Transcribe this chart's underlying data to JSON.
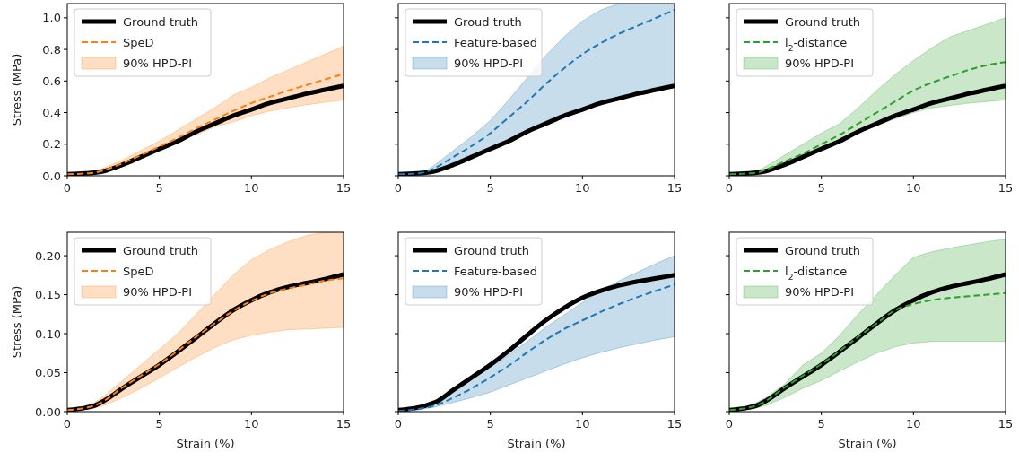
{
  "chart_data": [
    {
      "type": "line",
      "ylabel": "Stress (MPa)",
      "x": [
        0,
        1,
        1.5,
        2,
        3,
        4,
        5,
        6,
        7,
        8,
        9,
        10,
        11,
        12,
        13,
        14,
        15
      ],
      "xlim": [
        0,
        15
      ],
      "xticks": [
        0,
        5,
        10,
        15
      ],
      "ylim": [
        0,
        1.09
      ],
      "yticks": [
        {
          "value": 0,
          "label": "0.0"
        },
        {
          "value": 0.2,
          "label": "0.2"
        },
        {
          "value": 0.4,
          "label": "0.4"
        },
        {
          "value": 0.6,
          "label": "0.6"
        },
        {
          "value": 0.8,
          "label": "0.8"
        },
        {
          "value": 1,
          "label": "1.0"
        }
      ],
      "legend": "top left",
      "grid": false,
      "series": [
        {
          "name": "Ground truth",
          "color": "#000000",
          "line_style": "solid",
          "values": [
            0.01,
            0.015,
            0.02,
            0.03,
            0.07,
            0.12,
            0.17,
            0.22,
            0.28,
            0.33,
            0.38,
            0.42,
            0.46,
            0.49,
            0.52,
            0.545,
            0.57
          ]
        },
        {
          "name": "SpeD",
          "color": "#ff7f0e",
          "line_style": "dashed",
          "values": [
            0.01,
            0.015,
            0.02,
            0.035,
            0.08,
            0.13,
            0.185,
            0.24,
            0.3,
            0.355,
            0.41,
            0.46,
            0.5,
            0.54,
            0.575,
            0.61,
            0.645
          ],
          "lower": [
            0.005,
            0.01,
            0.015,
            0.025,
            0.06,
            0.11,
            0.16,
            0.21,
            0.26,
            0.31,
            0.34,
            0.38,
            0.41,
            0.43,
            0.45,
            0.465,
            0.48
          ],
          "upper": [
            0.01,
            0.02,
            0.03,
            0.05,
            0.1,
            0.16,
            0.22,
            0.29,
            0.36,
            0.43,
            0.51,
            0.56,
            0.62,
            0.67,
            0.72,
            0.77,
            0.82
          ]
        },
        {
          "name": "90% HPD-PI",
          "type": "area",
          "color": "#ff7f0e",
          "values": [
            null,
            null,
            null,
            null,
            null,
            null,
            null,
            null,
            null,
            null,
            null,
            null,
            null,
            null,
            null,
            null,
            null
          ]
        }
      ]
    },
    {
      "type": "line",
      "x": [
        0,
        1,
        1.5,
        2,
        3,
        4,
        5,
        6,
        7,
        8,
        9,
        10,
        11,
        12,
        13,
        14,
        15
      ],
      "xlim": [
        0,
        15
      ],
      "xticks": [
        0,
        5,
        10,
        15
      ],
      "ylim": [
        0,
        1.09
      ],
      "yticks": [
        0,
        0.2,
        0.4,
        0.6,
        0.8,
        1
      ],
      "tick_labels": "x",
      "legend": "top left",
      "grid": false,
      "series": [
        {
          "name": "Groud truth",
          "color": "#000000",
          "line_style": "solid",
          "values": [
            0.01,
            0.015,
            0.02,
            0.03,
            0.07,
            0.12,
            0.17,
            0.22,
            0.28,
            0.33,
            0.38,
            0.42,
            0.46,
            0.49,
            0.52,
            0.545,
            0.57
          ]
        },
        {
          "name": "Feature-based",
          "color": "#1f77b4",
          "line_style": "dashed",
          "values": [
            0.01,
            0.015,
            0.025,
            0.05,
            0.12,
            0.19,
            0.27,
            0.37,
            0.47,
            0.58,
            0.68,
            0.77,
            0.84,
            0.9,
            0.95,
            1.0,
            1.05
          ],
          "lower": [
            0.005,
            0.01,
            0.015,
            0.02,
            0.06,
            0.11,
            0.16,
            0.21,
            0.27,
            0.32,
            0.37,
            0.41,
            0.45,
            0.48,
            0.51,
            0.535,
            0.56
          ],
          "upper": [
            0.01,
            0.02,
            0.03,
            0.07,
            0.16,
            0.25,
            0.35,
            0.48,
            0.62,
            0.76,
            0.88,
            0.98,
            1.05,
            1.09,
            1.09,
            1.09,
            1.09
          ]
        },
        {
          "name": "90% HPD-PI",
          "type": "area",
          "color": "#1f77b4",
          "values": [
            null,
            null,
            null,
            null,
            null,
            null,
            null,
            null,
            null,
            null,
            null,
            null,
            null,
            null,
            null,
            null,
            null
          ]
        }
      ]
    },
    {
      "type": "line",
      "x": [
        0,
        1,
        1.5,
        2,
        3,
        4,
        5,
        6,
        7,
        8,
        9,
        10,
        11,
        12,
        13,
        14,
        15
      ],
      "xlim": [
        0,
        15
      ],
      "xticks": [
        0,
        5,
        10,
        15
      ],
      "ylim": [
        0,
        1.09
      ],
      "yticks": [
        0,
        0.2,
        0.4,
        0.6,
        0.8,
        1
      ],
      "tick_labels": "x",
      "legend": "top left",
      "grid": false,
      "series": [
        {
          "name": "Ground truth",
          "color": "#000000",
          "line_style": "solid",
          "values": [
            0.01,
            0.015,
            0.02,
            0.03,
            0.07,
            0.12,
            0.17,
            0.22,
            0.28,
            0.33,
            0.38,
            0.42,
            0.46,
            0.49,
            0.52,
            0.545,
            0.57
          ]
        },
        {
          "name": "l$_{2}$-distance",
          "color": "#2ca02c",
          "line_style": "dashed",
          "values": [
            0.01,
            0.015,
            0.02,
            0.04,
            0.09,
            0.14,
            0.2,
            0.26,
            0.33,
            0.4,
            0.47,
            0.54,
            0.59,
            0.63,
            0.67,
            0.7,
            0.72
          ],
          "lower": [
            0.005,
            0.01,
            0.015,
            0.025,
            0.06,
            0.11,
            0.16,
            0.21,
            0.27,
            0.32,
            0.36,
            0.4,
            0.43,
            0.445,
            0.46,
            0.47,
            0.48
          ],
          "upper": [
            0.01,
            0.02,
            0.03,
            0.06,
            0.13,
            0.2,
            0.27,
            0.33,
            0.43,
            0.54,
            0.64,
            0.73,
            0.81,
            0.88,
            0.92,
            0.96,
            1.0
          ]
        },
        {
          "name": "90% HPD-PI",
          "type": "area",
          "color": "#2ca02c",
          "values": [
            null,
            null,
            null,
            null,
            null,
            null,
            null,
            null,
            null,
            null,
            null,
            null,
            null,
            null,
            null,
            null,
            null
          ]
        }
      ]
    },
    {
      "type": "line",
      "xlabel": "Strain (%)",
      "ylabel": "Stress (MPa)",
      "x": [
        0,
        1,
        1.5,
        2,
        3,
        4,
        5,
        6,
        7,
        8,
        9,
        10,
        11,
        12,
        13,
        14,
        15
      ],
      "xlim": [
        0,
        15
      ],
      "xticks": [
        0,
        5,
        10,
        15
      ],
      "ylim": [
        0,
        0.23
      ],
      "yticks": [
        {
          "value": 0,
          "label": "0.00"
        },
        {
          "value": 0.05,
          "label": "0.05"
        },
        {
          "value": 0.1,
          "label": "0.10"
        },
        {
          "value": 0.15,
          "label": "0.15"
        },
        {
          "value": 0.2,
          "label": "0.20"
        }
      ],
      "legend": "top left",
      "grid": false,
      "series": [
        {
          "name": "Ground truth",
          "color": "#000000",
          "line_style": "solid",
          "values": [
            0.002,
            0.005,
            0.008,
            0.014,
            0.03,
            0.045,
            0.06,
            0.077,
            0.095,
            0.113,
            0.13,
            0.143,
            0.153,
            0.16,
            0.165,
            0.17,
            0.176
          ]
        },
        {
          "name": "SpeD",
          "color": "#ff7f0e",
          "line_style": "dashed",
          "values": [
            0.002,
            0.005,
            0.008,
            0.014,
            0.031,
            0.046,
            0.061,
            0.078,
            0.096,
            0.113,
            0.129,
            0.142,
            0.152,
            0.158,
            0.163,
            0.168,
            0.171
          ],
          "lower": [
            0.001,
            0.003,
            0.005,
            0.008,
            0.018,
            0.03,
            0.043,
            0.057,
            0.07,
            0.082,
            0.092,
            0.098,
            0.102,
            0.105,
            0.106,
            0.107,
            0.108
          ],
          "upper": [
            0.002,
            0.006,
            0.012,
            0.02,
            0.04,
            0.06,
            0.08,
            0.1,
            0.125,
            0.15,
            0.175,
            0.195,
            0.208,
            0.218,
            0.226,
            0.23,
            0.23
          ]
        },
        {
          "name": "90% HPD-PI",
          "type": "area",
          "color": "#ff7f0e",
          "values": [
            null,
            null,
            null,
            null,
            null,
            null,
            null,
            null,
            null,
            null,
            null,
            null,
            null,
            null,
            null,
            null,
            null
          ]
        }
      ]
    },
    {
      "type": "line",
      "xlabel": "Strain (%)",
      "x": [
        0,
        1,
        1.5,
        2,
        3,
        4,
        5,
        6,
        7,
        8,
        9,
        10,
        11,
        12,
        13,
        14,
        15
      ],
      "xlim": [
        0,
        15
      ],
      "xticks": [
        0,
        5,
        10,
        15
      ],
      "ylim": [
        0,
        0.23
      ],
      "yticks": [
        0,
        0.05,
        0.1,
        0.15,
        0.2
      ],
      "tick_labels": "x",
      "legend": "top left",
      "grid": false,
      "series": [
        {
          "name": "Ground truth",
          "color": "#000000",
          "line_style": "solid",
          "values": [
            0.002,
            0.005,
            0.008,
            0.012,
            0.028,
            0.044,
            0.06,
            0.078,
            0.098,
            0.117,
            0.133,
            0.146,
            0.155,
            0.162,
            0.167,
            0.171,
            0.175
          ]
        },
        {
          "name": "Feature-based",
          "color": "#1f77b4",
          "line_style": "dashed",
          "values": [
            0.001,
            0.003,
            0.005,
            0.008,
            0.018,
            0.03,
            0.044,
            0.059,
            0.076,
            0.092,
            0.106,
            0.117,
            0.128,
            0.138,
            0.147,
            0.155,
            0.163
          ],
          "lower": [
            0.001,
            0.002,
            0.004,
            0.006,
            0.012,
            0.018,
            0.025,
            0.034,
            0.043,
            0.052,
            0.061,
            0.069,
            0.076,
            0.082,
            0.087,
            0.092,
            0.096
          ],
          "upper": [
            0.002,
            0.005,
            0.008,
            0.012,
            0.027,
            0.042,
            0.057,
            0.073,
            0.09,
            0.108,
            0.124,
            0.14,
            0.155,
            0.168,
            0.179,
            0.19,
            0.2
          ]
        },
        {
          "name": "90% HPD-PI",
          "type": "area",
          "color": "#1f77b4",
          "values": [
            null,
            null,
            null,
            null,
            null,
            null,
            null,
            null,
            null,
            null,
            null,
            null,
            null,
            null,
            null,
            null,
            null
          ]
        }
      ]
    },
    {
      "type": "line",
      "xlabel": "Strain (%)",
      "x": [
        0,
        1,
        1.5,
        2,
        3,
        4,
        5,
        6,
        7,
        8,
        9,
        10,
        11,
        12,
        13,
        14,
        15
      ],
      "xlim": [
        0,
        15
      ],
      "xticks": [
        0,
        5,
        10,
        15
      ],
      "ylim": [
        0,
        0.23
      ],
      "yticks": [
        0,
        0.05,
        0.1,
        0.15,
        0.2
      ],
      "tick_labels": "x",
      "legend": "top left",
      "grid": false,
      "series": [
        {
          "name": "Ground truth",
          "color": "#000000",
          "line_style": "solid",
          "values": [
            0.002,
            0.005,
            0.008,
            0.014,
            0.03,
            0.045,
            0.06,
            0.077,
            0.095,
            0.113,
            0.13,
            0.143,
            0.153,
            0.16,
            0.165,
            0.17,
            0.176
          ]
        },
        {
          "name": "l$_{2}$-distance",
          "color": "#2ca02c",
          "line_style": "dashed",
          "values": [
            0.002,
            0.005,
            0.008,
            0.014,
            0.031,
            0.046,
            0.061,
            0.078,
            0.096,
            0.113,
            0.13,
            0.138,
            0.143,
            0.146,
            0.148,
            0.15,
            0.152
          ],
          "lower": [
            0.001,
            0.003,
            0.005,
            0.008,
            0.018,
            0.03,
            0.04,
            0.052,
            0.064,
            0.075,
            0.083,
            0.088,
            0.09,
            0.09,
            0.09,
            0.09,
            0.09
          ],
          "upper": [
            0.002,
            0.006,
            0.012,
            0.018,
            0.035,
            0.06,
            0.075,
            0.098,
            0.125,
            0.15,
            0.175,
            0.198,
            0.205,
            0.21,
            0.214,
            0.218,
            0.221
          ]
        },
        {
          "name": "90% HPD-PI",
          "type": "area",
          "color": "#2ca02c",
          "values": [
            null,
            null,
            null,
            null,
            null,
            null,
            null,
            null,
            null,
            null,
            null,
            null,
            null,
            null,
            null,
            null,
            null
          ]
        }
      ]
    }
  ]
}
